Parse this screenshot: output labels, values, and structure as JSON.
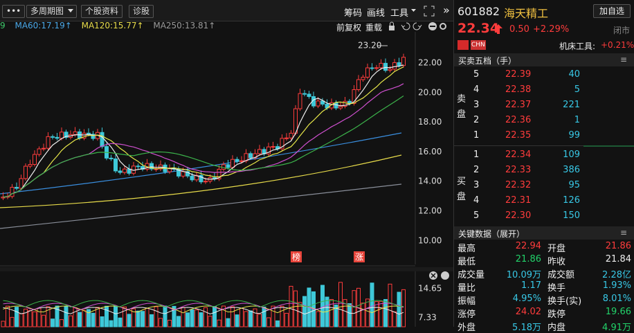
{
  "toolbar": {
    "more": "•••",
    "buttons": [
      "多周期图",
      "个股资料",
      "诊股"
    ],
    "right": [
      "筹码",
      "画线",
      "工具"
    ],
    "expand": "»"
  },
  "ma_legend": [
    "9",
    "MA60:17.19↑",
    "MA120:15.77↑",
    "MA250:13.81↑"
  ],
  "chart_tools": [
    "前复权",
    "重载"
  ],
  "price_axis": [
    "22.00",
    "20.00",
    "18.00",
    "16.00",
    "14.00",
    "12.00",
    "10.00"
  ],
  "high_marker": "23.20",
  "event_markers": [
    "榜",
    "涨"
  ],
  "volume_axis": [
    "14.65",
    "7.33"
  ],
  "quote": {
    "code": "601882",
    "name": "海天精工",
    "add": "加自选",
    "price": "22.34",
    "change": "0.50",
    "pct": "+2.29%",
    "status": "闭市",
    "industry": "机床工具:",
    "industry_pct": "+0.21%",
    "flag": "CHN"
  },
  "order_book": {
    "title": "买卖五档（手）",
    "sell_label": "卖盘",
    "buy_label": "买盘",
    "sell": [
      [
        "5",
        "22.39",
        "40"
      ],
      [
        "4",
        "22.38",
        "5"
      ],
      [
        "3",
        "22.37",
        "221"
      ],
      [
        "2",
        "22.36",
        "1"
      ],
      [
        "1",
        "22.35",
        "99"
      ]
    ],
    "buy": [
      [
        "1",
        "22.34",
        "109"
      ],
      [
        "2",
        "22.33",
        "386"
      ],
      [
        "3",
        "22.32",
        "95"
      ],
      [
        "4",
        "22.31",
        "126"
      ],
      [
        "5",
        "22.30",
        "150"
      ]
    ]
  },
  "key_data": {
    "title": "关键数据（展开）",
    "rows": [
      [
        "最高",
        "22.94",
        "开盘",
        "21.86"
      ],
      [
        "最低",
        "21.86",
        "昨收",
        "21.84"
      ],
      [
        "成交量",
        "10.09万",
        "成交额",
        "2.28亿"
      ],
      [
        "量比",
        "1.17",
        "换手",
        "1.93%"
      ],
      [
        "振幅",
        "4.95%",
        "换手(实)",
        "8.01%"
      ],
      [
        "涨停",
        "24.02",
        "跌停",
        "19.66"
      ],
      [
        "外盘",
        "5.18万",
        "内盘",
        "4.91万"
      ]
    ]
  }
}
